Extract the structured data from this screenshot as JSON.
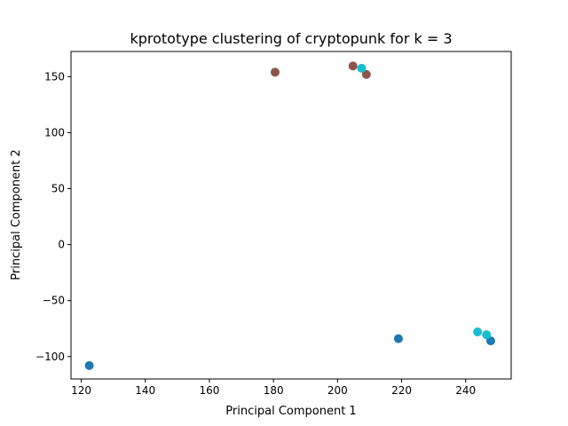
{
  "chart_data": {
    "type": "scatter",
    "title": "kprototype clustering of cryptopunk for k = 3",
    "xlabel": "Principal Component 1",
    "ylabel": "Principal Component 2",
    "xlim": [
      116.8,
      254.2
    ],
    "ylim": [
      -120,
      172.5
    ],
    "xticks": [
      120,
      140,
      160,
      180,
      200,
      220,
      240
    ],
    "xtick_labels": [
      "120",
      "140",
      "160",
      "180",
      "200",
      "220",
      "240"
    ],
    "yticks": [
      -100,
      -50,
      0,
      50,
      100,
      150
    ],
    "ytick_labels": [
      "−100",
      "−50",
      "0",
      "50",
      "100",
      "150"
    ],
    "grid": false,
    "colors": {
      "cluster_a": "#1f77b4",
      "cluster_b": "#8c564b",
      "cluster_c": "#17becf"
    },
    "points": [
      {
        "x": 122.5,
        "y": -108,
        "color": "#1f77b4"
      },
      {
        "x": 219.0,
        "y": -84,
        "color": "#1f77b4"
      },
      {
        "x": 247.8,
        "y": -86,
        "color": "#1f77b4"
      },
      {
        "x": 180.5,
        "y": 154,
        "color": "#8c564b"
      },
      {
        "x": 204.8,
        "y": 159.5,
        "color": "#8c564b"
      },
      {
        "x": 209.0,
        "y": 152,
        "color": "#8c564b"
      },
      {
        "x": 207.5,
        "y": 157.5,
        "color": "#17becf"
      },
      {
        "x": 243.7,
        "y": -78,
        "color": "#17becf"
      },
      {
        "x": 246.5,
        "y": -80.5,
        "color": "#17becf"
      }
    ]
  }
}
